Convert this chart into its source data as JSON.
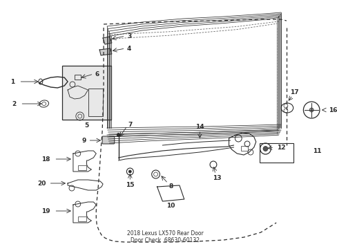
{
  "bg_color": "#ffffff",
  "line_color": "#2a2a2a",
  "figsize": [
    4.89,
    3.6
  ],
  "dpi": 100,
  "title": "2018 Lexus LX570 Rear Door\nDoor Check  68630-60132"
}
